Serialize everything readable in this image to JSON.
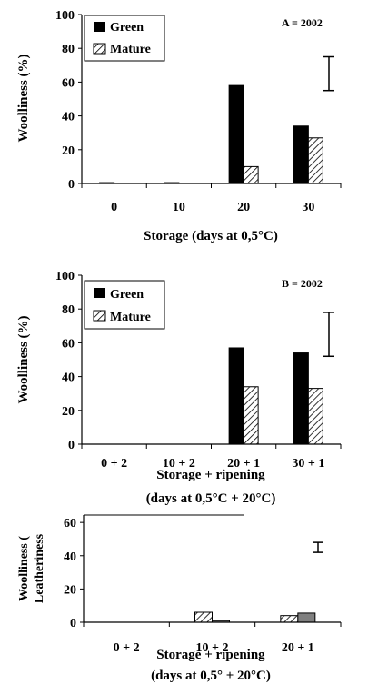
{
  "chart_data": [
    {
      "type": "bar",
      "annotation": "A = 2002",
      "title": "",
      "xlabel": [
        "Storage (days at 0,5°C)"
      ],
      "ylabel": "Woolliness (%)",
      "ylim": [
        0,
        100
      ],
      "yticks": [
        "0",
        "20",
        "40",
        "60",
        "80",
        "100"
      ],
      "categories": [
        "0",
        "10",
        "20",
        "30"
      ],
      "series": [
        {
          "name": "Green",
          "pattern": "solid",
          "values": [
            0.5,
            0.5,
            58,
            34
          ]
        },
        {
          "name": "Mature",
          "pattern": "hatch",
          "values": [
            0,
            0,
            10,
            27
          ]
        }
      ],
      "error_bar": {
        "low": 55,
        "high": 75
      },
      "legend": "top-left",
      "grid": false
    },
    {
      "type": "bar",
      "annotation": "B = 2002",
      "title": "",
      "xlabel": [
        "Storage + ripening",
        "(days at 0,5°C + 20°C)"
      ],
      "ylabel": "Woolliness (%)",
      "ylim": [
        0,
        100
      ],
      "yticks": [
        "0",
        "20",
        "40",
        "60",
        "80",
        "100"
      ],
      "categories": [
        "0 + 2",
        "10 + 2",
        "20 + 1",
        "30 + 1"
      ],
      "series": [
        {
          "name": "Green",
          "pattern": "solid",
          "values": [
            0,
            0,
            57,
            54
          ]
        },
        {
          "name": "Mature",
          "pattern": "hatch",
          "values": [
            0,
            0,
            34,
            33
          ]
        }
      ],
      "error_bar": {
        "low": 52,
        "high": 78
      },
      "legend": "top-left",
      "grid": false
    },
    {
      "type": "bar",
      "annotation": "",
      "title": "",
      "xlabel": [
        "Storage + ripening",
        "(days at 0,5° + 20°C)"
      ],
      "ylabel": "Woolliness (",
      "ylabel2": "Leatheriness",
      "ylim": [
        0,
        65
      ],
      "yticks": [
        "0",
        "20",
        "40",
        "60"
      ],
      "categories": [
        "0 + 2",
        "10 + 2",
        "20 + 1"
      ],
      "series": [
        {
          "name": "",
          "pattern": "hatch",
          "values": [
            0,
            6,
            4
          ]
        },
        {
          "name": "",
          "pattern": "gray",
          "values": [
            0,
            1,
            5.5
          ]
        }
      ],
      "error_bar": {
        "low": 42,
        "high": 48
      },
      "legend": "none",
      "grid": false
    }
  ],
  "colors": {
    "solid": "#000000",
    "gray": "#808080",
    "axis": "#000000"
  }
}
